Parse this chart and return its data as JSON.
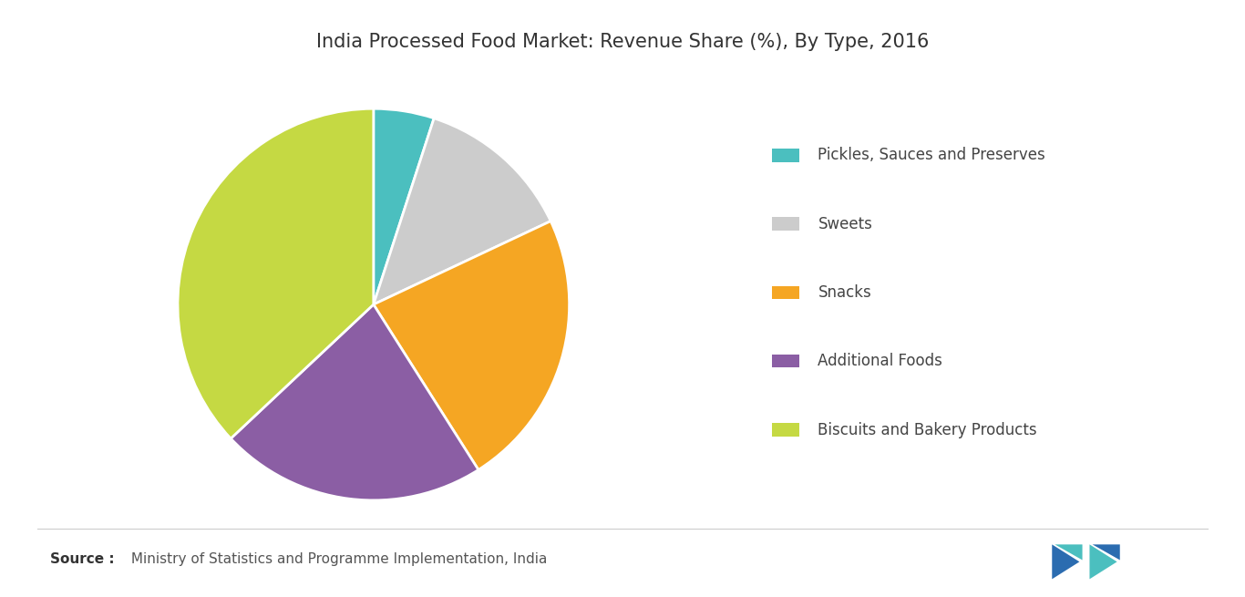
{
  "title": "India Processed Food Market: Revenue Share (%), By Type, 2016",
  "slices": [
    {
      "label": "Pickles, Sauces and Preserves",
      "value": 5,
      "color": "#4BBFBF"
    },
    {
      "label": "Sweets",
      "value": 13,
      "color": "#CCCCCC"
    },
    {
      "label": "Snacks",
      "value": 23,
      "color": "#F5A623"
    },
    {
      "label": "Additional Foods",
      "value": 22,
      "color": "#8B5EA4"
    },
    {
      "label": "Biscuits and Bakery Products",
      "value": 37,
      "color": "#C5D943"
    }
  ],
  "source_bold": "Source :",
  "source_rest": " Ministry of Statistics and Programme Implementation, India",
  "background_color": "#FFFFFF",
  "title_fontsize": 15,
  "legend_fontsize": 12,
  "source_fontsize": 11,
  "startangle": 90
}
